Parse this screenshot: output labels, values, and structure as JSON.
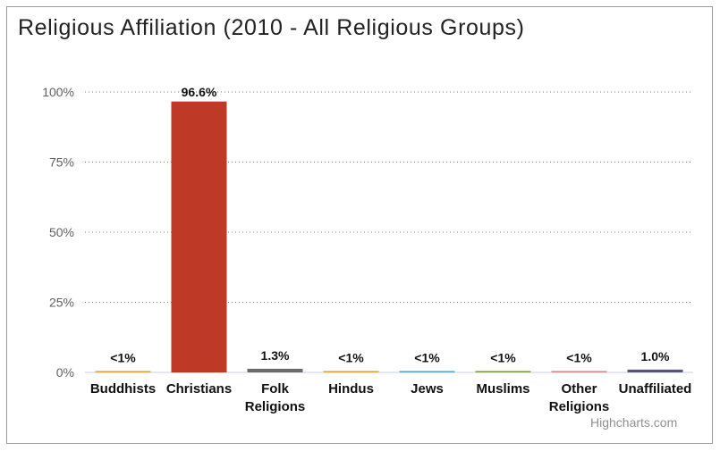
{
  "chart_data": {
    "type": "bar",
    "title": "Religious Affiliation (2010 - All Religious Groups)",
    "categories": [
      "Buddhists",
      "Christians",
      "Folk Religions",
      "Hindus",
      "Jews",
      "Muslims",
      "Other Religions",
      "Unaffiliated"
    ],
    "series": [
      {
        "values": [
          0.5,
          96.6,
          1.3,
          0.5,
          0.5,
          0.5,
          0.5,
          1.0
        ],
        "data_labels": [
          "<1%",
          "96.6%",
          "1.3%",
          "<1%",
          "<1%",
          "<1%",
          "<1%",
          "1.0%"
        ]
      }
    ],
    "bar_colors": [
      "#e3a33b",
      "#be3a26",
      "#6b6b6b",
      "#e3a33b",
      "#5aa6c9",
      "#7f9a3c",
      "#d08a8a",
      "#555577"
    ],
    "yticks": [
      "0%",
      "25%",
      "50%",
      "75%",
      "100%"
    ],
    "ylim": [
      0,
      100
    ],
    "xlabel": "",
    "ylabel": "",
    "grid": true,
    "legend": "none"
  },
  "credit": "Highcharts.com"
}
